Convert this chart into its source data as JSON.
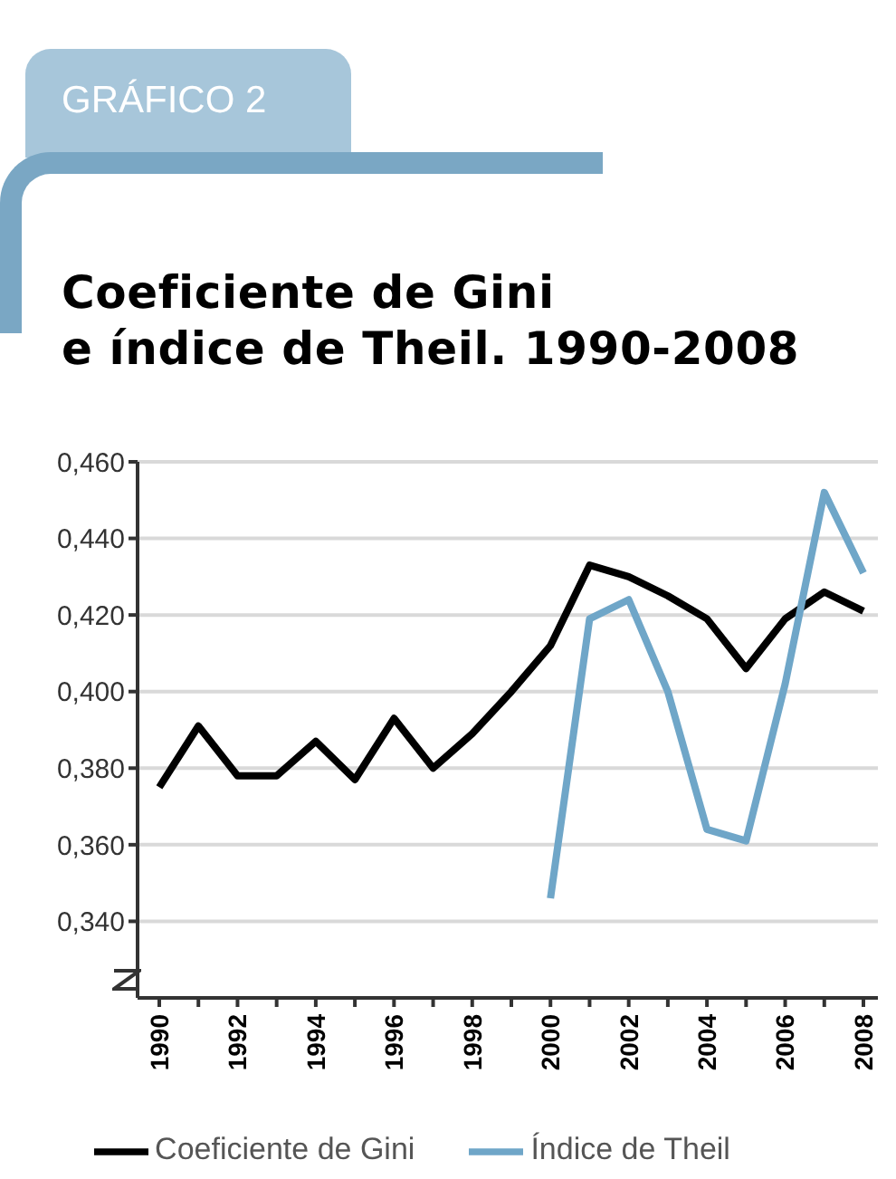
{
  "chart_data": {
    "type": "line",
    "title": "Coeficiente de Gini\ne índice de Theil. 1990-2008",
    "annotations": [
      "GRÁFICO 2"
    ],
    "categories": [
      "1990",
      null,
      "1992",
      null,
      "1994",
      null,
      "1996",
      null,
      "1998",
      null,
      "2000",
      null,
      "2002",
      null,
      "2004",
      null,
      "2006",
      null,
      "2008"
    ],
    "series": [
      {
        "name": "Coeficiente de Gini",
        "color": "#000000",
        "values": [
          0.375,
          0.391,
          0.378,
          0.378,
          0.387,
          0.377,
          0.393,
          0.38,
          0.389,
          0.4,
          0.412,
          0.433,
          0.43,
          0.425,
          0.419,
          0.406,
          0.419,
          0.426,
          0.421
        ]
      },
      {
        "name": "Índice de Theil",
        "color": "#6fa6c8",
        "values": [
          null,
          null,
          null,
          null,
          null,
          null,
          null,
          null,
          null,
          null,
          0.346,
          0.419,
          0.424,
          0.4,
          0.364,
          0.361,
          0.402,
          0.452,
          0.431
        ]
      }
    ],
    "ylim": [
      0.32,
      0.46
    ],
    "yticks": [
      {
        "value": 0.34,
        "label": "0,340"
      },
      {
        "value": 0.36,
        "label": "0,360"
      },
      {
        "value": 0.38,
        "label": "0,380"
      },
      {
        "value": 0.4,
        "label": "0,400"
      },
      {
        "value": 0.42,
        "label": "0,420"
      },
      {
        "value": 0.44,
        "label": "0,440"
      },
      {
        "value": 0.46,
        "label": "0,460"
      }
    ],
    "grid": "y",
    "legend": "bottom",
    "marker": "none",
    "line_style": "solid"
  }
}
